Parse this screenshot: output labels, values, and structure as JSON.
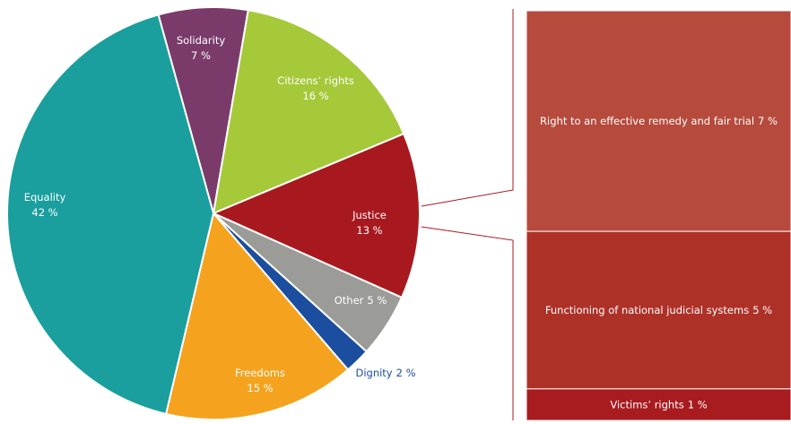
{
  "chart_data": {
    "type": "pie",
    "categories": [
      "Solidarity",
      "Citizens’ rights",
      "Justice",
      "Other",
      "Dignity",
      "Freedoms",
      "Equality"
    ],
    "values": [
      7,
      16,
      13,
      5,
      2,
      15,
      42
    ],
    "value_labels": [
      "7 %",
      "16 %",
      "13 %",
      "5 %",
      "2 %",
      "15 %",
      "42 %"
    ],
    "colors": [
      "#7b3b6a",
      "#a6c93a",
      "#a8191f",
      "#9b9b97",
      "#1b4e9e",
      "#f5a31e",
      "#1a9e9e"
    ],
    "breakdown": {
      "categories": [
        "Right to an effective remedy and fair trial",
        "Functioning of national judicial systems",
        "Victims’ rights"
      ],
      "values": [
        7,
        5,
        1
      ],
      "value_labels": [
        "7 %",
        "5 %",
        "1 %"
      ],
      "colors": [
        "#b64a3c",
        "#ae3128",
        "#a81b1f"
      ]
    }
  }
}
